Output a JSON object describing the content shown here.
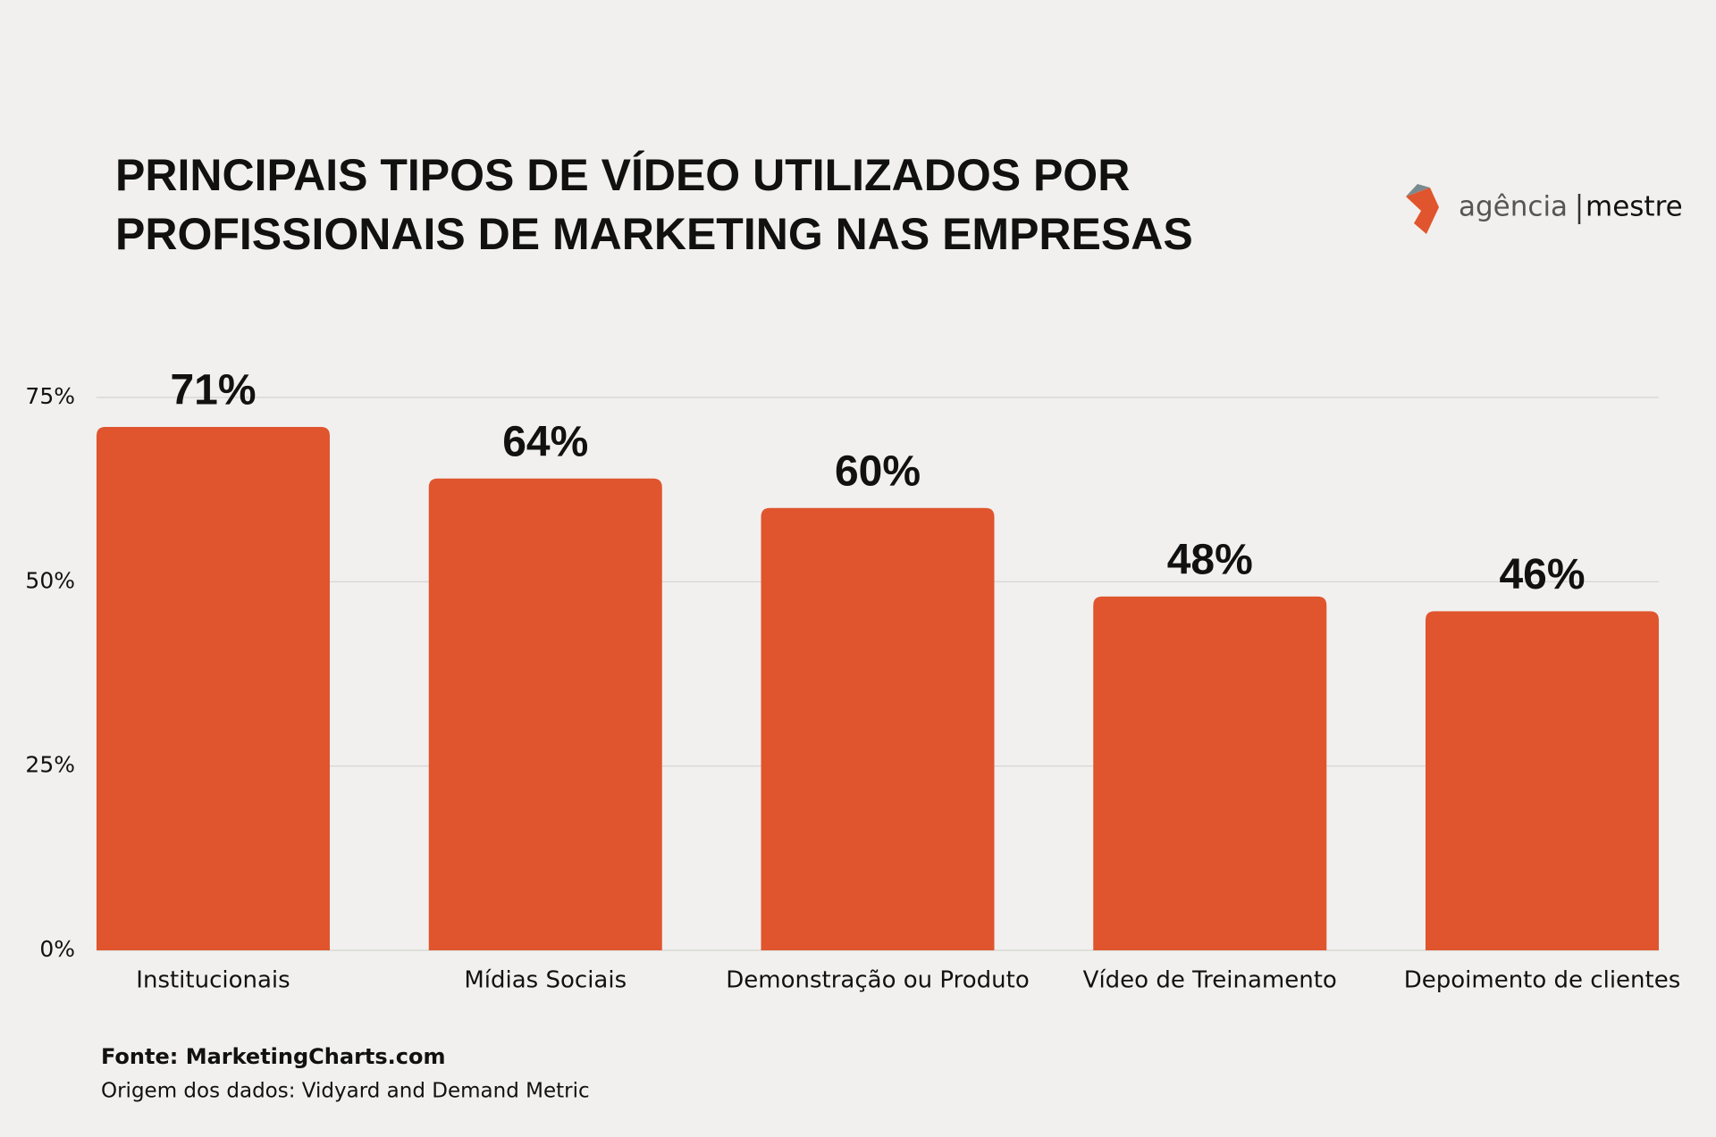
{
  "chart_data": {
    "type": "bar",
    "title": [
      "PRINCIPAIS TIPOS DE VÍDEO UTILIZADOS POR",
      "PROFISSIONAIS DE MARKETING NAS EMPRESAS"
    ],
    "categories": [
      "Institucionais",
      "Mídias Sociais",
      "Demonstração ou Produto",
      "Vídeo de Treinamento",
      "Depoimento de clientes"
    ],
    "values": [
      71,
      64,
      60,
      48,
      46
    ],
    "value_labels": [
      "71%",
      "64%",
      "60%",
      "48%",
      "46%"
    ],
    "color": "#e0552d",
    "ylim": [
      0,
      75
    ],
    "yticks": [
      {
        "value": 0,
        "label": "0%"
      },
      {
        "value": 25,
        "label": "25%"
      },
      {
        "value": 50,
        "label": "50%"
      },
      {
        "value": 75,
        "label": "75%"
      }
    ],
    "grid": true,
    "source": "Fonte: MarketingCharts.com",
    "note": "Origem dos dados: Vidyard and Demand Metric"
  },
  "logo": [
    "agência",
    "mestre"
  ]
}
